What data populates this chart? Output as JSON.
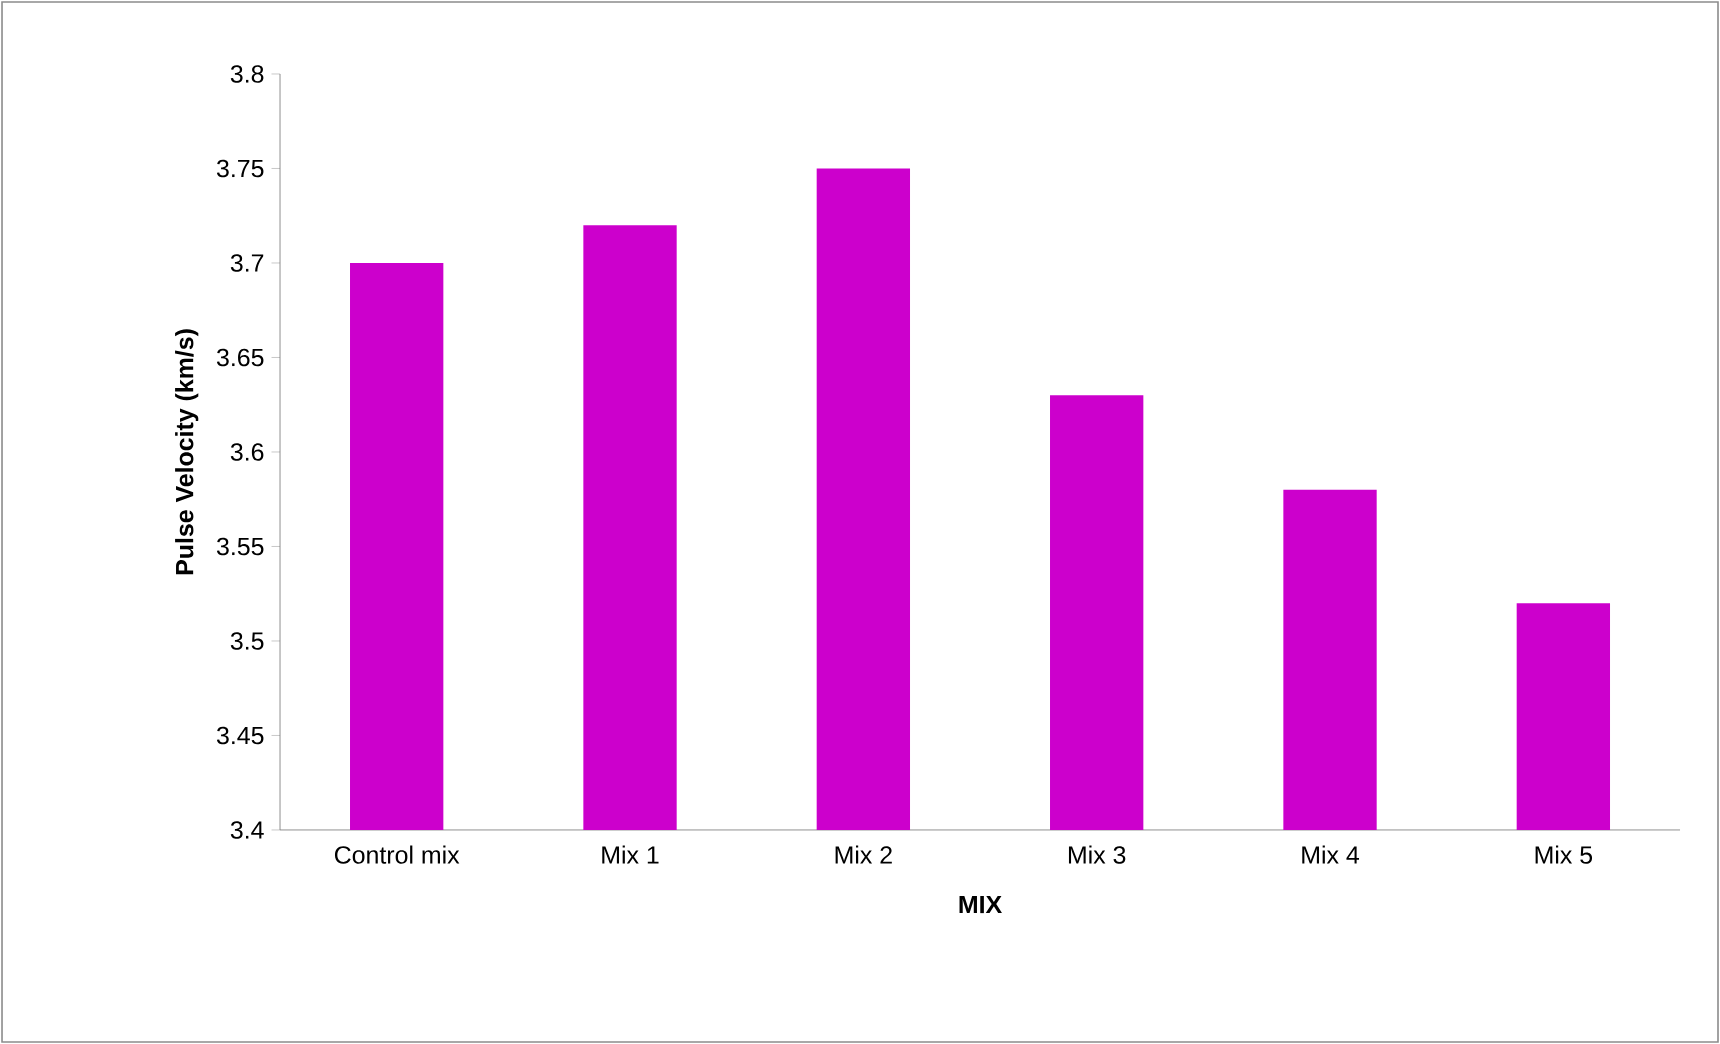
{
  "chart_data": {
    "type": "bar",
    "xlabel": "MIX",
    "ylabel": "Pulse Velocity (km/s)",
    "categories": [
      "Control mix",
      "Mix 1",
      "Mix 2",
      "Mix 3",
      "Mix 4",
      "Mix 5"
    ],
    "values": [
      3.7,
      3.72,
      3.75,
      3.63,
      3.58,
      3.52
    ],
    "color": "#cc00cc",
    "ylim": [
      3.4,
      3.8
    ],
    "yticks": [
      3.4,
      3.45,
      3.5,
      3.55,
      3.6,
      3.65,
      3.7,
      3.75,
      3.8
    ],
    "grid": false
  }
}
